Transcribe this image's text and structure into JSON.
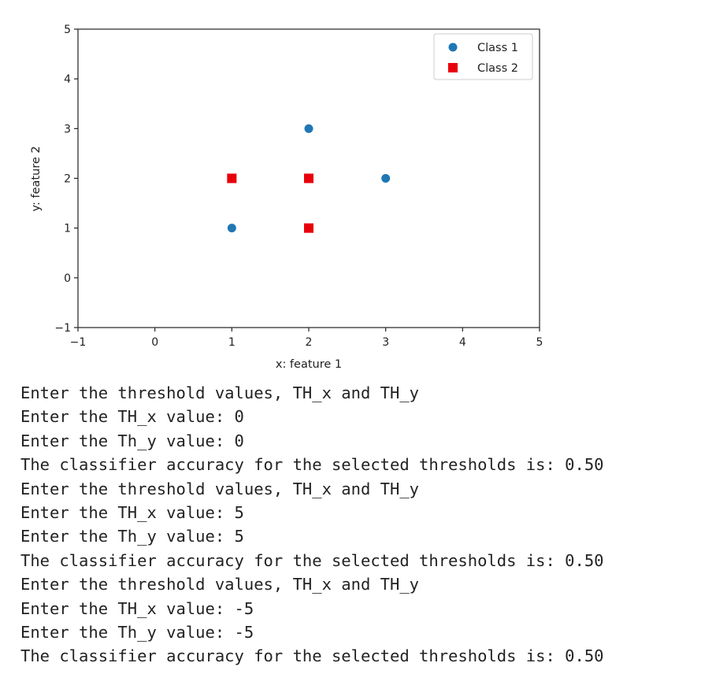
{
  "chart_data": {
    "type": "scatter",
    "xlabel": "x: feature 1",
    "ylabel": "y: feature 2",
    "xlim": [
      -1,
      5
    ],
    "ylim": [
      -1,
      5
    ],
    "xticks": [
      "−1",
      "0",
      "1",
      "2",
      "3",
      "4",
      "5"
    ],
    "yticks": [
      "−1",
      "0",
      "1",
      "2",
      "3",
      "4",
      "5"
    ],
    "grid": false,
    "legend_position": "top-right",
    "series": [
      {
        "name": "Class 1",
        "marker": "circle",
        "color": "#1f77b4",
        "points": [
          {
            "x": 1,
            "y": 1
          },
          {
            "x": 2,
            "y": 3
          },
          {
            "x": 3,
            "y": 2
          }
        ]
      },
      {
        "name": "Class 2",
        "marker": "square",
        "color": "#e8000b",
        "points": [
          {
            "x": 1,
            "y": 2
          },
          {
            "x": 2,
            "y": 2
          },
          {
            "x": 2,
            "y": 1
          }
        ]
      }
    ]
  },
  "console": {
    "lines": [
      "Enter the threshold values, TH_x and TH_y",
      "Enter the TH_x value: 0",
      "Enter the Th_y value: 0",
      "The classifier accuracy for the selected thresholds is: 0.50",
      "Enter the threshold values, TH_x and TH_y",
      "Enter the TH_x value: 5",
      "Enter the Th_y value: 5",
      "The classifier accuracy for the selected thresholds is: 0.50",
      "Enter the threshold values, TH_x and TH_y",
      "Enter the TH_x value: -5",
      "Enter the Th_y value: -5",
      "The classifier accuracy for the selected thresholds is: 0.50"
    ]
  }
}
